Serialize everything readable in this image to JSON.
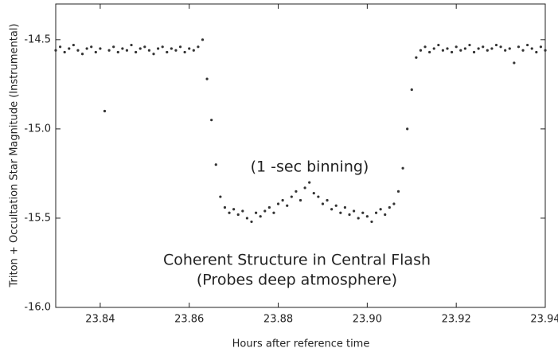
{
  "chart_data": {
    "type": "scatter",
    "xlabel": "Hours after reference time",
    "ylabel": "Triton + Occultation Star Magnitude (Instrumental)",
    "annotations": [
      "(1 -sec binning)",
      "Coherent Structure in Central Flash",
      "(Probes deep atmosphere)"
    ],
    "color": "#333333",
    "xlim": [
      23.83,
      23.94
    ],
    "ylim": [
      -16.0,
      -14.3
    ],
    "xticks": [
      23.84,
      23.86,
      23.88,
      {
        "value": 23.9,
        "label": "23.90"
      },
      23.92,
      23.94
    ],
    "yticks": [
      -14.5,
      {
        "value": -15,
        "label": "-15.0"
      },
      -15.5,
      {
        "value": -16,
        "label": "-16.0"
      }
    ],
    "x": [
      23.83,
      23.831,
      23.832,
      23.833,
      23.834,
      23.835,
      23.836,
      23.837,
      23.838,
      23.839,
      23.84,
      23.841,
      23.842,
      23.843,
      23.844,
      23.845,
      23.846,
      23.847,
      23.848,
      23.849,
      23.85,
      23.851,
      23.852,
      23.853,
      23.854,
      23.855,
      23.856,
      23.857,
      23.858,
      23.859,
      23.86,
      23.861,
      23.862,
      23.863,
      23.864,
      23.865,
      23.866,
      23.867,
      23.868,
      23.869,
      23.87,
      23.871,
      23.872,
      23.873,
      23.874,
      23.875,
      23.876,
      23.877,
      23.878,
      23.879,
      23.88,
      23.881,
      23.882,
      23.883,
      23.884,
      23.885,
      23.886,
      23.887,
      23.888,
      23.889,
      23.89,
      23.891,
      23.892,
      23.893,
      23.894,
      23.895,
      23.896,
      23.897,
      23.898,
      23.899,
      23.9,
      23.901,
      23.902,
      23.903,
      23.904,
      23.905,
      23.906,
      23.907,
      23.908,
      23.909,
      23.91,
      23.911,
      23.912,
      23.913,
      23.914,
      23.915,
      23.916,
      23.917,
      23.918,
      23.919,
      23.92,
      23.921,
      23.922,
      23.923,
      23.924,
      23.925,
      23.926,
      23.927,
      23.928,
      23.929,
      23.93,
      23.931,
      23.932,
      23.933,
      23.934,
      23.935,
      23.936,
      23.937,
      23.938,
      23.939,
      23.94
    ],
    "y": [
      -14.56,
      -14.54,
      -14.57,
      -14.55,
      -14.53,
      -14.56,
      -14.58,
      -14.55,
      -14.54,
      -14.57,
      -14.55,
      -14.9,
      -14.56,
      -14.54,
      -14.57,
      -14.55,
      -14.56,
      -14.53,
      -14.57,
      -14.55,
      -14.54,
      -14.56,
      -14.58,
      -14.55,
      -14.54,
      -14.57,
      -14.55,
      -14.56,
      -14.54,
      -14.57,
      -14.55,
      -14.56,
      -14.54,
      -14.5,
      -14.72,
      -14.95,
      -15.2,
      -15.38,
      -15.44,
      -15.47,
      -15.45,
      -15.48,
      -15.46,
      -15.5,
      -15.52,
      -15.47,
      -15.49,
      -15.46,
      -15.44,
      -15.47,
      -15.42,
      -15.4,
      -15.43,
      -15.38,
      -15.35,
      -15.4,
      -15.33,
      -15.3,
      -15.36,
      -15.38,
      -15.42,
      -15.4,
      -15.45,
      -15.43,
      -15.47,
      -15.44,
      -15.48,
      -15.46,
      -15.5,
      -15.47,
      -15.49,
      -15.52,
      -15.47,
      -15.45,
      -15.48,
      -15.44,
      -15.42,
      -15.35,
      -15.22,
      -15.0,
      -14.78,
      -14.6,
      -14.56,
      -14.54,
      -14.57,
      -14.55,
      -14.53,
      -14.56,
      -14.55,
      -14.57,
      -14.54,
      -14.56,
      -14.55,
      -14.53,
      -14.57,
      -14.55,
      -14.54,
      -14.56,
      -14.55,
      -14.53,
      -14.54,
      -14.56,
      -14.55,
      -14.63,
      -14.54,
      -14.56,
      -14.53,
      -14.55,
      -14.57,
      -14.54,
      -14.56
    ]
  }
}
